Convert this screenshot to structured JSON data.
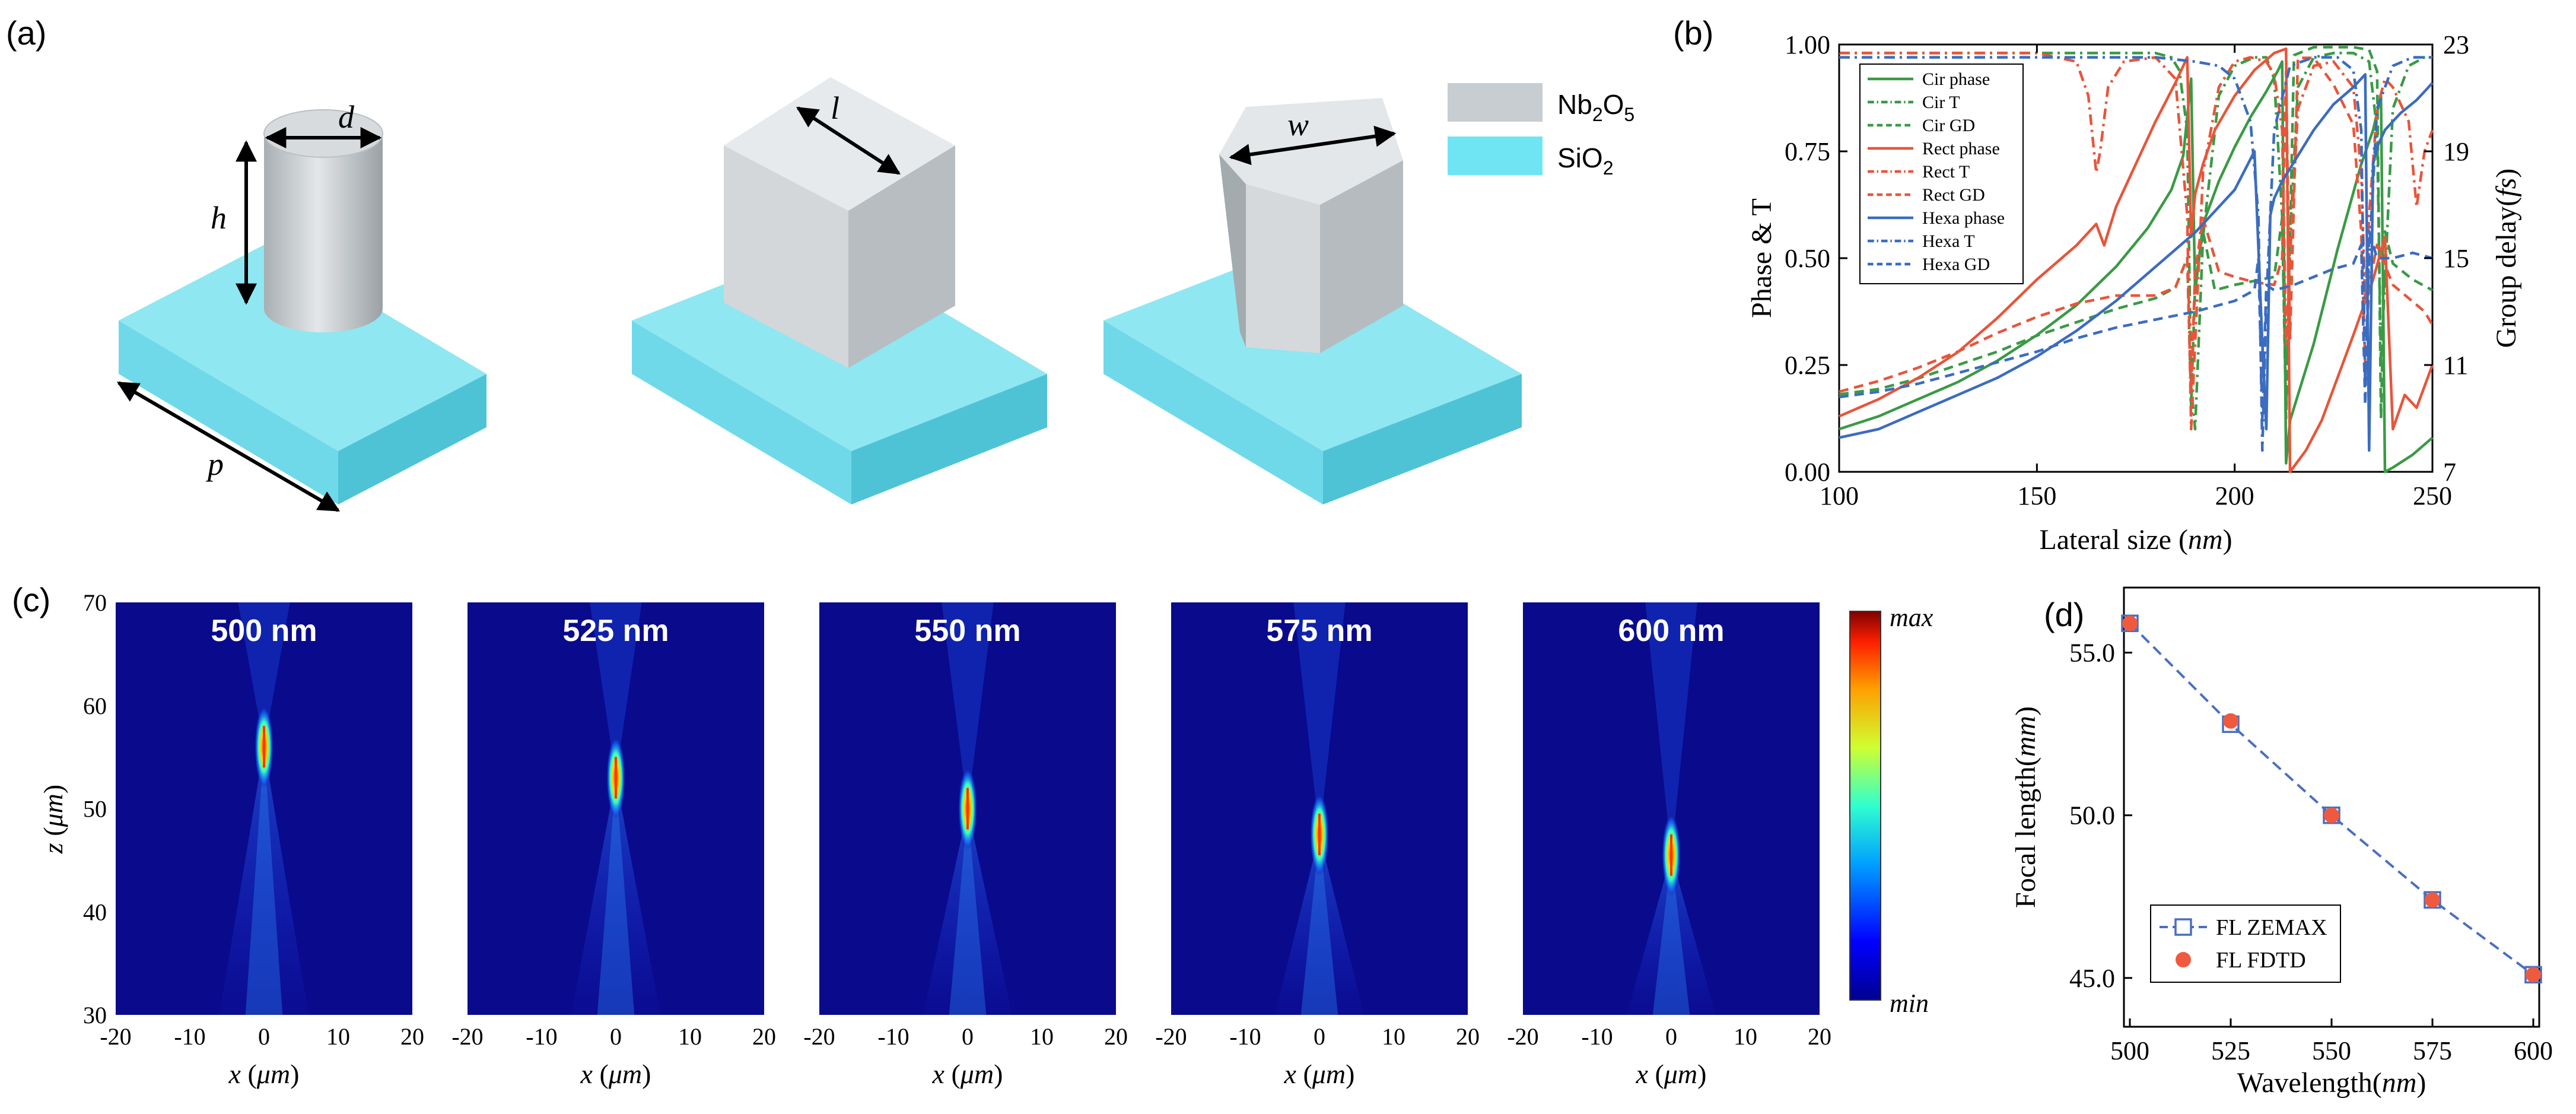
{
  "panel_labels": {
    "a": "(a)",
    "b": "(b)",
    "c": "(c)",
    "d": "(d)"
  },
  "colors": {
    "green": "#3a9a45",
    "red": "#e8553a",
    "blue": "#3b6cc0",
    "substrate_top": "#8fe7f2",
    "substrate_front": "#6fd9ea",
    "substrate_side": "#4fc3d6",
    "pillar_light": "#e6e9eb",
    "pillar_mid": "#c7cdd0",
    "pillar_dark": "#9ea5a9",
    "field_bg": "#0a0a8c",
    "fdtd": "#ef5a3f",
    "zemax": "#4a6fc0"
  },
  "legend_a": {
    "nb2o5": "Nb2O5",
    "sio2": "SiO2"
  },
  "dim_labels": {
    "d": "d",
    "h": "h",
    "p": "p",
    "l": "l",
    "w": "w"
  },
  "chart_data": [
    {
      "id": "b",
      "type": "line",
      "title": "",
      "xlabel": "Lateral size (nm)",
      "ylabel": "Phase & T",
      "y2label": "Group delay(fs)",
      "xlim": [
        100,
        250
      ],
      "ylim": [
        0,
        1
      ],
      "y2lim": [
        7,
        23
      ],
      "xticks": [
        "100",
        "150",
        "200",
        "250"
      ],
      "yticks": [
        "0.00",
        "0.25",
        "0.50",
        "0.75",
        "1.00"
      ],
      "y2ticks": [
        "7",
        "11",
        "15",
        "19",
        "23"
      ],
      "legend_position": "top-left",
      "series": [
        {
          "name": "Cir phase",
          "color": "green",
          "style": "solid",
          "axis": "left",
          "x": [
            100,
            110,
            120,
            130,
            140,
            150,
            160,
            170,
            178,
            184,
            187,
            189,
            190,
            192,
            196,
            200,
            204,
            208,
            211,
            212,
            213,
            214,
            220,
            226,
            232,
            235,
            237,
            238,
            240,
            245,
            250
          ],
          "y": [
            0.1,
            0.13,
            0.17,
            0.21,
            0.26,
            0.32,
            0.39,
            0.48,
            0.57,
            0.66,
            0.74,
            0.92,
            0.42,
            0.58,
            0.68,
            0.76,
            0.83,
            0.89,
            0.94,
            0.96,
            0.02,
            0.12,
            0.3,
            0.52,
            0.72,
            0.8,
            0.88,
            0.0,
            0.01,
            0.04,
            0.08
          ]
        },
        {
          "name": "Cir T",
          "color": "green",
          "style": "dashdot",
          "axis": "left",
          "x": [
            100,
            140,
            170,
            180,
            184,
            186,
            188,
            189,
            190,
            192,
            196,
            200,
            205,
            208,
            210,
            212,
            213,
            214,
            216,
            220,
            225,
            230,
            234,
            236,
            237,
            238,
            240,
            244,
            248,
            250
          ],
          "y": [
            0.98,
            0.98,
            0.98,
            0.98,
            0.97,
            0.94,
            0.8,
            0.2,
            0.1,
            0.55,
            0.88,
            0.95,
            0.97,
            0.97,
            0.92,
            0.6,
            0.15,
            0.55,
            0.9,
            0.97,
            0.98,
            0.98,
            0.96,
            0.8,
            0.25,
            0.45,
            0.85,
            0.95,
            0.97,
            0.97
          ]
        },
        {
          "name": "Cir GD",
          "color": "green",
          "style": "dashed",
          "axis": "right",
          "x": [
            100,
            110,
            120,
            130,
            140,
            150,
            160,
            170,
            180,
            185,
            188,
            189,
            190,
            192,
            195,
            200,
            210,
            212,
            213,
            215,
            220,
            225,
            230,
            234,
            236,
            237,
            238,
            240,
            245,
            250
          ],
          "y": [
            9.9,
            10.1,
            10.5,
            11.0,
            11.5,
            12.1,
            12.6,
            13.1,
            13.5,
            13.9,
            15.0,
            9.5,
            14.0,
            16.0,
            13.8,
            14.0,
            14.3,
            16.5,
            9.0,
            22.6,
            22.9,
            22.9,
            22.9,
            22.8,
            22.0,
            9.0,
            16.0,
            14.8,
            14.2,
            13.8
          ]
        },
        {
          "name": "Rect phase",
          "color": "red",
          "style": "solid",
          "axis": "left",
          "x": [
            100,
            110,
            120,
            130,
            140,
            150,
            160,
            165,
            167,
            170,
            175,
            180,
            185,
            188,
            189,
            190,
            192,
            195,
            200,
            205,
            210,
            213,
            214,
            218,
            222,
            226,
            230,
            235,
            238,
            240,
            243,
            246,
            250
          ],
          "y": [
            0.13,
            0.17,
            0.22,
            0.28,
            0.36,
            0.45,
            0.53,
            0.58,
            0.53,
            0.62,
            0.72,
            0.82,
            0.91,
            0.97,
            0.55,
            0.65,
            0.72,
            0.8,
            0.88,
            0.94,
            0.98,
            0.99,
            0.0,
            0.05,
            0.12,
            0.22,
            0.32,
            0.45,
            0.55,
            0.1,
            0.18,
            0.15,
            0.25
          ]
        },
        {
          "name": "Rect T",
          "color": "red",
          "style": "dashdot",
          "axis": "left",
          "x": [
            100,
            130,
            150,
            160,
            163,
            165,
            166,
            168,
            172,
            180,
            185,
            188,
            189,
            190,
            192,
            196,
            200,
            204,
            208,
            210,
            212,
            213,
            214,
            216,
            220,
            225,
            230,
            232,
            233,
            234,
            236,
            238,
            240,
            244,
            246,
            248,
            250
          ],
          "y": [
            0.98,
            0.98,
            0.98,
            0.96,
            0.88,
            0.7,
            0.75,
            0.9,
            0.96,
            0.97,
            0.92,
            0.6,
            0.1,
            0.3,
            0.7,
            0.9,
            0.96,
            0.97,
            0.96,
            0.93,
            0.8,
            0.3,
            0.5,
            0.85,
            0.95,
            0.96,
            0.9,
            0.7,
            0.4,
            0.6,
            0.85,
            0.92,
            0.9,
            0.82,
            0.62,
            0.75,
            0.8
          ]
        },
        {
          "name": "Rect GD",
          "color": "red",
          "style": "dashed",
          "axis": "right",
          "x": [
            100,
            110,
            120,
            130,
            140,
            150,
            160,
            170,
            180,
            185,
            188,
            189,
            190,
            192,
            196,
            200,
            205,
            210,
            212,
            213,
            214,
            216,
            220,
            225,
            230,
            232,
            233,
            234,
            236,
            240,
            244,
            248,
            250
          ],
          "y": [
            10.0,
            10.4,
            10.9,
            11.5,
            12.2,
            12.8,
            13.3,
            13.6,
            13.6,
            13.9,
            15.0,
            10.0,
            14.5,
            16.5,
            14.5,
            14.3,
            14.1,
            14.0,
            15.0,
            22.0,
            12.0,
            22.5,
            22.5,
            21.5,
            20.0,
            16.0,
            11.0,
            14.0,
            15.5,
            14.0,
            13.5,
            13.0,
            12.5
          ]
        },
        {
          "name": "Hexa phase",
          "color": "blue",
          "style": "solid",
          "axis": "left",
          "x": [
            100,
            110,
            120,
            130,
            140,
            150,
            160,
            170,
            180,
            190,
            200,
            205,
            207,
            208,
            209,
            210,
            212,
            216,
            220,
            225,
            230,
            233,
            234,
            235,
            236,
            238,
            242,
            246,
            250
          ],
          "y": [
            0.08,
            0.1,
            0.14,
            0.18,
            0.22,
            0.27,
            0.33,
            0.4,
            0.48,
            0.56,
            0.66,
            0.75,
            0.3,
            0.1,
            0.6,
            0.64,
            0.68,
            0.74,
            0.8,
            0.86,
            0.9,
            0.93,
            0.05,
            0.72,
            0.76,
            0.8,
            0.84,
            0.87,
            0.91
          ]
        },
        {
          "name": "Hexa T",
          "color": "blue",
          "style": "dashdot",
          "axis": "left",
          "x": [
            100,
            140,
            180,
            190,
            196,
            200,
            204,
            206,
            207,
            208,
            210,
            214,
            220,
            226,
            230,
            232,
            233,
            234,
            236,
            240,
            245,
            250
          ],
          "y": [
            0.97,
            0.97,
            0.97,
            0.96,
            0.95,
            0.92,
            0.82,
            0.6,
            0.05,
            0.4,
            0.8,
            0.95,
            0.97,
            0.97,
            0.94,
            0.8,
            0.2,
            0.5,
            0.85,
            0.95,
            0.97,
            0.97
          ]
        },
        {
          "name": "Hexa GD",
          "color": "blue",
          "style": "dashed",
          "axis": "right",
          "x": [
            100,
            110,
            120,
            130,
            140,
            150,
            160,
            170,
            180,
            190,
            200,
            205,
            206,
            207,
            208,
            210,
            215,
            220,
            225,
            230,
            232,
            233,
            234,
            236,
            240,
            245,
            250
          ],
          "y": [
            9.8,
            10.0,
            10.3,
            10.7,
            11.1,
            11.5,
            12.0,
            12.4,
            12.7,
            13.0,
            13.4,
            13.8,
            15.0,
            9.0,
            14.0,
            13.8,
            14.0,
            14.3,
            14.6,
            14.8,
            15.5,
            9.5,
            16.0,
            15.0,
            15.0,
            15.2,
            15.0
          ]
        }
      ]
    },
    {
      "id": "c",
      "type": "heatmap",
      "xlabel": "x (μm)",
      "ylabel": "z (μm)",
      "xlim": [
        -20,
        20
      ],
      "ylim": [
        30,
        70
      ],
      "xticks": [
        "-20",
        "-10",
        "0",
        "10",
        "20"
      ],
      "yticks": [
        "30",
        "40",
        "50",
        "60",
        "70"
      ],
      "colorbar": {
        "max": "max",
        "min": "min"
      },
      "panels": [
        {
          "label": "500 nm",
          "focus_z": 56.0
        },
        {
          "label": "525 nm",
          "focus_z": 53.0
        },
        {
          "label": "550 nm",
          "focus_z": 50.0
        },
        {
          "label": "575 nm",
          "focus_z": 47.5
        },
        {
          "label": "600 nm",
          "focus_z": 45.5
        }
      ]
    },
    {
      "id": "d",
      "type": "scatter",
      "xlabel": "Wavelength(nm)",
      "ylabel": "Focal length(mm)",
      "xlim": [
        500,
        600
      ],
      "ylim": [
        43.5,
        57
      ],
      "xticks": [
        "500",
        "525",
        "550",
        "575",
        "600"
      ],
      "yticks": [
        "45.0",
        "50.0",
        "55.0"
      ],
      "legend_position": "bottom-left",
      "categories": [
        500,
        525,
        550,
        575,
        600
      ],
      "series": [
        {
          "name": "FL ZEMAX",
          "marker": "open-square",
          "line": "dashed",
          "values": [
            55.9,
            52.8,
            50.0,
            47.4,
            45.1
          ]
        },
        {
          "name": "FL FDTD",
          "marker": "filled-circle",
          "line": "none",
          "values": [
            55.9,
            52.9,
            50.0,
            47.4,
            45.1
          ]
        }
      ]
    }
  ]
}
